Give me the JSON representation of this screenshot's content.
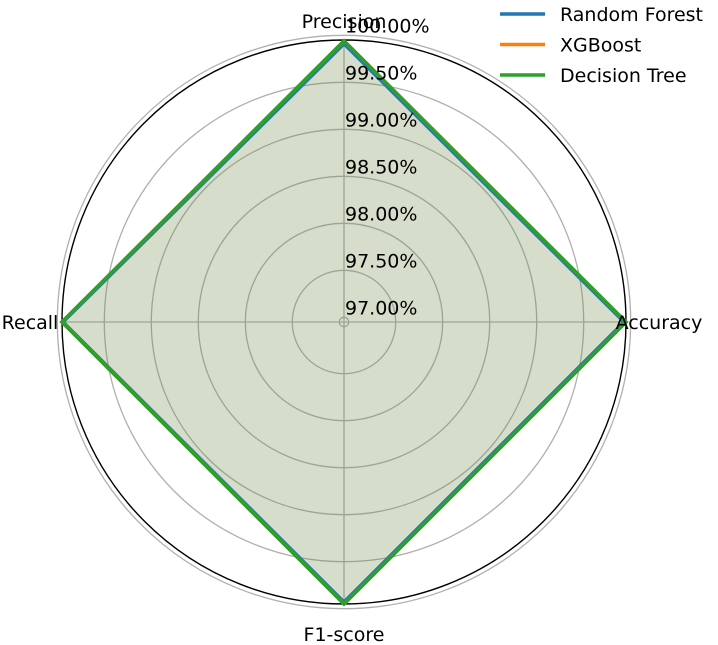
{
  "chart_data": {
    "type": "radar",
    "axes": [
      "Accuracy",
      "Precision",
      "Recall",
      "F1-score"
    ],
    "rlim": [
      0.9695,
      0.9995
    ],
    "rticks": [
      0.97,
      0.975,
      0.98,
      0.985,
      0.99,
      0.995,
      1.0
    ],
    "rtick_labels": [
      "97.00%",
      "97.50%",
      "98.00%",
      "98.50%",
      "99.00%",
      "99.50%",
      "100.00%"
    ],
    "grid": true,
    "legend_position": "top-right",
    "series": [
      {
        "name": "Random Forest",
        "color": "#1f77b4",
        "values": [
          0.9993,
          0.9991,
          0.9994,
          0.9993
        ]
      },
      {
        "name": "XGBoost",
        "color": "#ff7f0e",
        "values": [
          0.9995,
          0.9994,
          0.9995,
          0.9995
        ]
      },
      {
        "name": "Decision Tree",
        "color": "#2ca02c",
        "values": [
          0.9995,
          0.9994,
          0.9995,
          0.9995
        ]
      }
    ]
  }
}
